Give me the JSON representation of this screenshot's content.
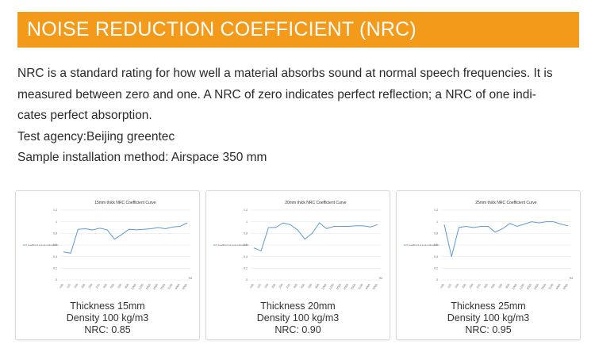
{
  "banner": {
    "title": "NOISE REDUCTION COEFFICIENT (NRC)"
  },
  "description": {
    "lines": [
      "NRC is a standard rating for how well a material absorbs sound at normal speech frequencies. It is",
      "measured between zero and one. A NRC of zero indicates perfect reflection; a NRC of one indi-",
      "cates perfect absorption.",
      "Test agency:Beijing greentec",
      "Sample installation method: Airspace 350 mm"
    ]
  },
  "products": [
    {
      "thickness": "Thickness 15mm",
      "density": "Density 100 kg/m3",
      "nrc": "NRC: 0.85"
    },
    {
      "thickness": "Thickness 20mm",
      "density": "Density 100 kg/m3",
      "nrc": "NRC: 0.90"
    },
    {
      "thickness": "Thickness 25mm",
      "density": "Density 100 kg/m3",
      "nrc": "NRC: 0.95"
    }
  ],
  "colors": {
    "banner": "#f39a1a",
    "line": "#5b9bd5",
    "grid": "#e3e3e3"
  },
  "chart_data": [
    {
      "type": "line",
      "title": "15mm thick NRC Coefficient Curve",
      "x_unit": "Hz",
      "x": [
        "100",
        "125",
        "160",
        "200",
        "250",
        "315",
        "400",
        "500",
        "630",
        "800",
        "1000",
        "1250",
        "1600",
        "2000",
        "2500",
        "3150",
        "4000",
        "5000"
      ],
      "y_ticks": [
        "0",
        "0.2",
        "0.4",
        "0.6",
        "0.8",
        "1",
        "1.2"
      ],
      "ylim": [
        0,
        1.2
      ],
      "series": [
        {
          "name": "Coefficient of sound absorption",
          "values": [
            0.48,
            0.46,
            0.87,
            0.88,
            0.86,
            0.89,
            0.86,
            0.7,
            0.78,
            0.87,
            0.86,
            0.87,
            0.88,
            0.9,
            0.88,
            0.91,
            0.92,
            0.98
          ]
        }
      ]
    },
    {
      "type": "line",
      "title": "20mm thick NRC Coefficient Curve",
      "x_unit": "Hz",
      "x": [
        "100",
        "125",
        "160",
        "200",
        "250",
        "315",
        "400",
        "500",
        "630",
        "800",
        "1000",
        "1250",
        "1600",
        "2000",
        "2500",
        "3150",
        "4000",
        "5000"
      ],
      "y_ticks": [
        "0",
        "0.2",
        "0.4",
        "0.6",
        "0.8",
        "1",
        "1.2"
      ],
      "ylim": [
        0,
        1.2
      ],
      "series": [
        {
          "name": "Coefficient of sound absorption",
          "values": [
            0.55,
            0.5,
            0.9,
            0.9,
            0.98,
            0.95,
            0.86,
            0.7,
            0.8,
            0.98,
            0.88,
            0.92,
            0.92,
            0.92,
            0.93,
            0.93,
            0.91,
            0.95
          ]
        }
      ]
    },
    {
      "type": "line",
      "title": "25mm thick NRC Coefficient Curve",
      "x_unit": "Hz",
      "x": [
        "100",
        "125",
        "160",
        "200",
        "250",
        "315",
        "400",
        "500",
        "630",
        "800",
        "1000",
        "1250",
        "1600",
        "2000",
        "2500",
        "3150",
        "4000",
        "5000"
      ],
      "y_ticks": [
        "0",
        "0.2",
        "0.4",
        "0.6",
        "0.8",
        "1",
        "1.2"
      ],
      "ylim": [
        0,
        1.2
      ],
      "series": [
        {
          "name": "Coefficient of sound absorption",
          "values": [
            0.95,
            0.4,
            0.9,
            0.92,
            0.9,
            0.92,
            0.92,
            0.82,
            0.88,
            0.97,
            0.92,
            0.96,
            1.0,
            0.98,
            1.0,
            1.0,
            0.96,
            0.93
          ]
        }
      ]
    }
  ]
}
